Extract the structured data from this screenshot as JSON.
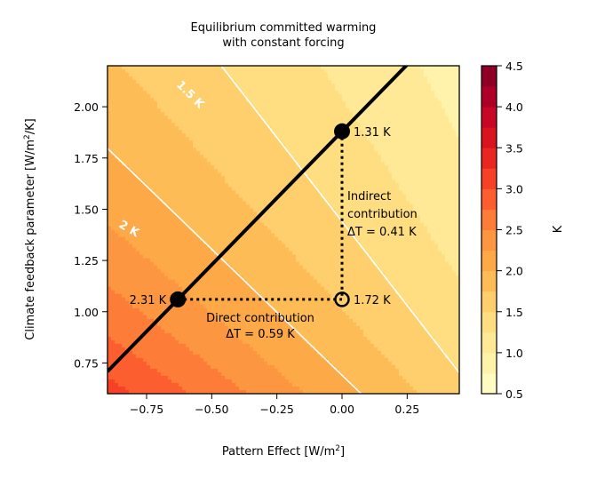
{
  "chart_data": {
    "type": "heatmap",
    "subtype": "filled-contour",
    "title": "Equilibrium committed warming\nwith constant forcing",
    "title_lines": [
      "Equilibrium committed warming",
      "with constant forcing"
    ],
    "xlabel": "Pattern Effect [W/m²]",
    "xlabel_parts": [
      "Pattern Effect [W/m",
      "2",
      "]"
    ],
    "ylabel": "Climate feedback parameter [W/m²/K]",
    "ylabel_parts": [
      "Climate feedback parameter [W/m",
      "2",
      "/K]"
    ],
    "xlim": [
      -0.9,
      0.45
    ],
    "ylim": [
      0.6,
      2.2
    ],
    "xticks": [
      -0.75,
      -0.5,
      -0.25,
      0.0,
      0.25
    ],
    "xtick_labels": [
      "−0.75",
      "−0.50",
      "−0.25",
      "0.00",
      "0.25"
    ],
    "yticks": [
      0.75,
      1.0,
      1.25,
      1.5,
      1.75,
      2.0
    ],
    "ytick_labels": [
      "0.75",
      "1.00",
      "1.25",
      "1.50",
      "1.75",
      "2.00"
    ],
    "colormap": "YlOrRd",
    "colorbar": {
      "label": "K",
      "range": [
        0.5,
        4.5
      ],
      "level_step": 0.25,
      "ticks": [
        0.5,
        1.0,
        1.5,
        2.0,
        2.5,
        3.0,
        3.5,
        4.0,
        4.5
      ],
      "tick_labels": [
        "0.5",
        "1.0",
        "1.5",
        "2.0",
        "2.5",
        "3.0",
        "3.5",
        "4.0",
        "4.5"
      ]
    },
    "contour_lines": [
      {
        "level": 1.5,
        "label": "1.5 K",
        "color": "#ffffff"
      },
      {
        "level": 2.0,
        "label": "2 K",
        "color": "#ffffff"
      }
    ],
    "points": [
      {
        "x": -0.63,
        "y": 1.06,
        "value_label": "2.31 K",
        "filled": true
      },
      {
        "x": 0.0,
        "y": 1.88,
        "value_label": "1.31 K",
        "filled": true
      },
      {
        "x": 0.0,
        "y": 1.06,
        "value_label": "1.72 K",
        "filled": false
      }
    ],
    "annotations": {
      "direct": [
        "Direct contribution",
        "ΔT = 0.59 K"
      ],
      "indirect": [
        "Indirect",
        "contribution",
        "ΔT = 0.41 K"
      ]
    },
    "grid": false
  }
}
